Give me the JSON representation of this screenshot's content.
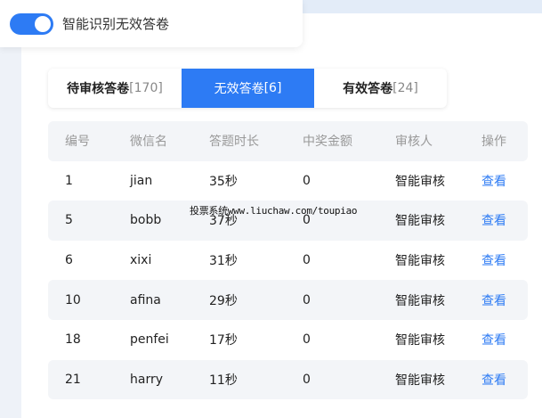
{
  "toggle": {
    "label": "智能识别无效答卷",
    "on": true,
    "color": "#2d7bf4"
  },
  "tabs": [
    {
      "label": "待审核答卷",
      "count": "[170]"
    },
    {
      "label": "无效答卷",
      "count": "[6]",
      "active": true
    },
    {
      "label": "有效答卷",
      "count": "[24]"
    }
  ],
  "table": {
    "headers": [
      "编号",
      "微信名",
      "答题时长",
      "中奖金额",
      "审核人",
      "操作"
    ],
    "rows": [
      [
        "1",
        "jian",
        "35秒",
        "0",
        "智能审核",
        "查看"
      ],
      [
        "5",
        "bobb",
        "37秒",
        "0",
        "智能审核",
        "查看"
      ],
      [
        "6",
        "xixi",
        "31秒",
        "0",
        "智能审核",
        "查看"
      ],
      [
        "10",
        "afina",
        "29秒",
        "0",
        "智能审核",
        "查看"
      ],
      [
        "18",
        "penfei",
        "17秒",
        "0",
        "智能审核",
        "查看"
      ],
      [
        "21",
        "harry",
        "11秒",
        "0",
        "智能审核",
        "查看"
      ]
    ]
  },
  "watermark": "投票系统www.liuchaw.com/toupiao"
}
